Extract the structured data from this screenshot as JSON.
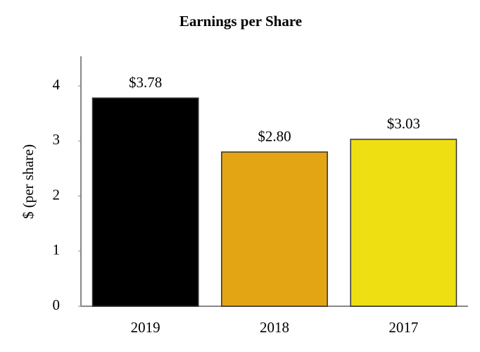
{
  "chart_data": {
    "type": "bar",
    "title": "Earnings per Share",
    "y_label": "$ (per share)",
    "categories": [
      "2019",
      "2018",
      "2017"
    ],
    "values": [
      3.78,
      2.8,
      3.03
    ],
    "value_labels": [
      "$3.78",
      "$2.80",
      "$3.03"
    ],
    "colors": [
      "#000000",
      "#e3a514",
      "#eedf12"
    ],
    "ylim": [
      0,
      4.5
    ],
    "yticks": [
      0,
      1,
      2,
      3,
      4
    ],
    "grid": false
  }
}
